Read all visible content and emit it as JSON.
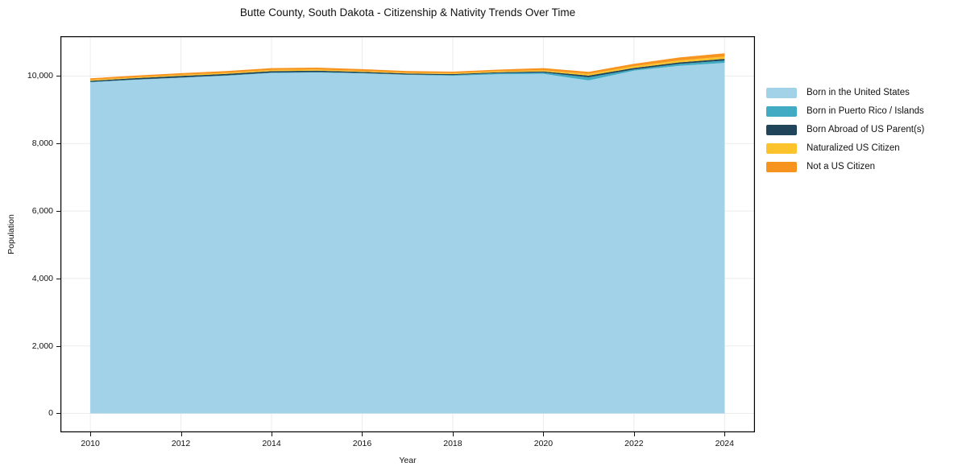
{
  "title": "Butte County, South Dakota - Citizenship & Nativity Trends Over Time",
  "chart_data": {
    "type": "area",
    "stacked": true,
    "title": "Butte County, South Dakota - Citizenship & Nativity Trends Over Time",
    "xlabel": "Year",
    "ylabel": "Population",
    "x": [
      2010,
      2011,
      2012,
      2013,
      2014,
      2015,
      2016,
      2017,
      2018,
      2019,
      2020,
      2021,
      2022,
      2023,
      2024
    ],
    "series": [
      {
        "name": "Born in the United States",
        "color": "#a2d2e7",
        "values": [
          9815,
          9890,
          9950,
          10010,
          10090,
          10105,
          10080,
          10035,
          10010,
          10055,
          10065,
          9870,
          10160,
          10305,
          10390
        ]
      },
      {
        "name": "Born in Puerto Rico / Islands",
        "color": "#41abc4",
        "values": [
          10,
          10,
          10,
          10,
          15,
          15,
          10,
          10,
          20,
          30,
          40,
          95,
          35,
          55,
          70
        ]
      },
      {
        "name": "Born Abroad of US Parent(s)",
        "color": "#20455a",
        "values": [
          35,
          40,
          45,
          45,
          40,
          40,
          35,
          30,
          30,
          30,
          30,
          50,
          45,
          45,
          50
        ]
      },
      {
        "name": "Naturalized US Citizen",
        "color": "#fcc32d",
        "values": [
          25,
          25,
          30,
          30,
          35,
          35,
          25,
          25,
          25,
          30,
          35,
          50,
          50,
          60,
          70
        ]
      },
      {
        "name": "Not a US Citizen",
        "color": "#f6941f",
        "values": [
          48,
          50,
          50,
          55,
          55,
          55,
          55,
          50,
          45,
          45,
          65,
          60,
          75,
          85,
          95
        ]
      }
    ],
    "xticks": [
      2010,
      2012,
      2014,
      2016,
      2018,
      2020,
      2022,
      2024
    ],
    "xtick_labels": [
      "2010",
      "2012",
      "2014",
      "2016",
      "2018",
      "2020",
      "2022",
      "2024"
    ],
    "yticks": [
      0,
      2000,
      4000,
      6000,
      8000,
      10000
    ],
    "ytick_labels": [
      "0",
      "2,000",
      "4,000",
      "6,000",
      "8,000",
      "10,000"
    ],
    "xlim": [
      2009.34,
      2024.67
    ],
    "ylim": [
      -561,
      11181
    ],
    "grid": true,
    "gridline_color": "#ececec",
    "frame_color": "#000000",
    "background_color": "#ffffff",
    "legend_position": "right"
  }
}
